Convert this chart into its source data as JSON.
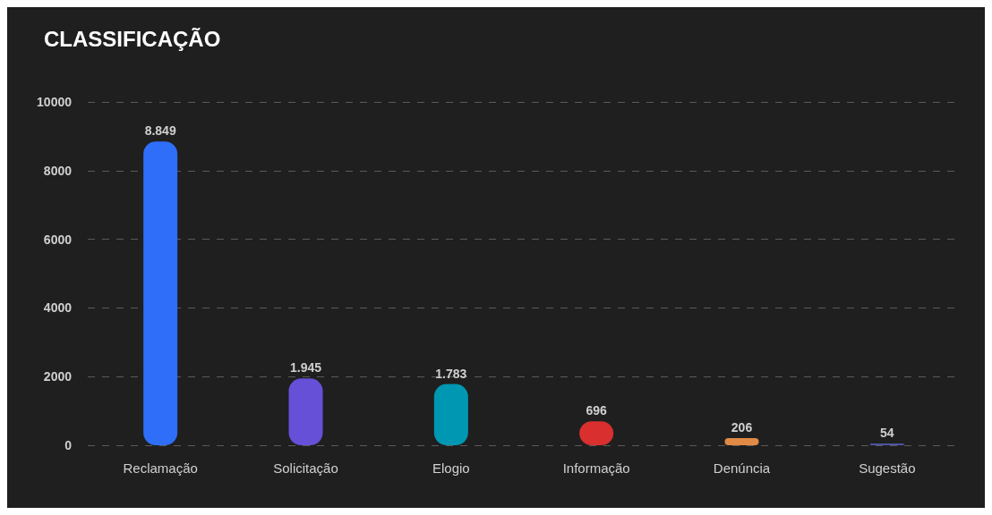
{
  "chart_data": {
    "type": "bar",
    "title": "CLASSIFICAÇÃO",
    "categories": [
      "Reclamação",
      "Solicitação",
      "Elogio",
      "Informação",
      "Denúncia",
      "Sugestão"
    ],
    "values": [
      8849,
      1945,
      1783,
      696,
      206,
      54
    ],
    "colors": [
      "#2f6ef9",
      "#6650d8",
      "#0097b2",
      "#d92f2f",
      "#e08a46",
      "#4a55a0"
    ],
    "value_labels": [
      "8.849",
      "1.945",
      "1.783",
      "696",
      "206",
      "54"
    ],
    "ylim": [
      0,
      10000
    ],
    "yticks": [
      0,
      2000,
      4000,
      6000,
      8000,
      10000
    ],
    "grid": "y"
  }
}
